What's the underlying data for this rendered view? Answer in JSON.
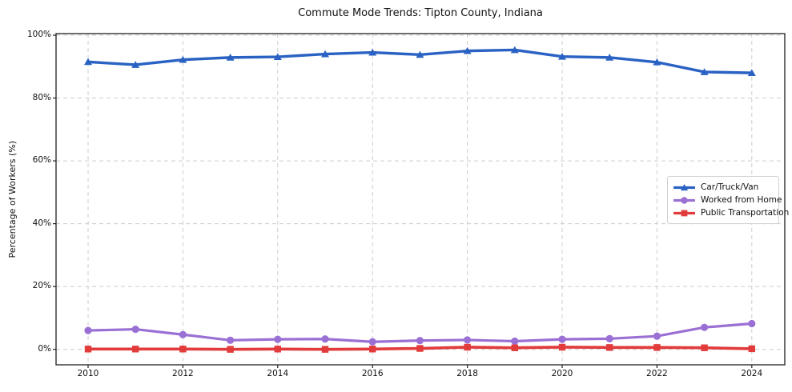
{
  "chart_data": {
    "type": "line",
    "title": "Commute Mode Trends: Tipton County, Indiana",
    "xlabel": "",
    "ylabel": "Percentage of Workers (%)",
    "x": [
      2010,
      2011,
      2012,
      2013,
      2014,
      2015,
      2016,
      2017,
      2018,
      2019,
      2020,
      2021,
      2022,
      2023,
      2024
    ],
    "xtick_years": [
      2010,
      2012,
      2014,
      2016,
      2018,
      2020,
      2022,
      2024
    ],
    "xtick_labels": [
      "2010",
      "2012",
      "2014",
      "2016",
      "2018",
      "2020",
      "2022",
      "2024"
    ],
    "ytick_values": [
      0,
      20,
      40,
      60,
      80,
      100
    ],
    "ytick_labels": [
      "0%",
      "20%",
      "40%",
      "60%",
      "80%",
      "100%"
    ],
    "ylim": [
      0,
      100
    ],
    "grid": true,
    "grid_style": "dashed",
    "legend_position": "right-middle-inside",
    "series": [
      {
        "name": "Car/Truck/Van",
        "color": "#2a62c4",
        "marker": "triangle",
        "values": [
          91.5,
          90.6,
          92.2,
          92.9,
          93.1,
          94.0,
          94.5,
          93.8,
          95.0,
          95.3,
          93.2,
          92.9,
          91.4,
          88.3,
          88.0
        ]
      },
      {
        "name": "Worked from Home",
        "color": "#9a70d4",
        "marker": "circle",
        "values": [
          6.0,
          6.4,
          4.7,
          2.9,
          3.2,
          3.3,
          2.4,
          2.8,
          3.0,
          2.6,
          3.2,
          3.4,
          4.2,
          7.0,
          8.2
        ]
      },
      {
        "name": "Public Transportation",
        "color": "#e23b3b",
        "marker": "square",
        "values": [
          0.1,
          0.1,
          0.1,
          0.0,
          0.1,
          0.0,
          0.1,
          0.3,
          0.7,
          0.5,
          0.7,
          0.6,
          0.6,
          0.5,
          0.2
        ]
      }
    ]
  }
}
